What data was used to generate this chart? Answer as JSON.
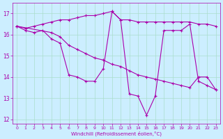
{
  "xlabel": "Windchill (Refroidissement éolien,°C)",
  "background_color": "#cceeff",
  "grid_color": "#aaddcc",
  "line_color": "#aa00aa",
  "xlim": [
    -0.5,
    23.5
  ],
  "ylim": [
    11.8,
    17.5
  ],
  "yticks": [
    12,
    13,
    14,
    15,
    16,
    17
  ],
  "xticks": [
    0,
    1,
    2,
    3,
    4,
    5,
    6,
    7,
    8,
    9,
    10,
    11,
    12,
    13,
    14,
    15,
    16,
    17,
    18,
    19,
    20,
    21,
    22,
    23
  ],
  "series1": {
    "x": [
      0,
      1,
      2,
      3,
      4,
      5,
      6,
      7,
      8,
      9,
      10,
      11,
      12,
      13,
      14,
      15,
      16,
      17,
      18,
      19,
      20,
      21,
      22,
      23
    ],
    "y": [
      16.4,
      16.3,
      16.4,
      16.5,
      16.6,
      16.7,
      16.7,
      16.8,
      16.9,
      16.9,
      17.0,
      17.1,
      16.7,
      16.7,
      16.6,
      16.6,
      16.6,
      16.6,
      16.6,
      16.6,
      16.6,
      16.5,
      16.5,
      16.4
    ]
  },
  "series2": {
    "x": [
      0,
      1,
      2,
      3,
      4,
      5,
      6,
      7,
      8,
      9,
      10,
      11,
      12,
      13,
      14,
      15,
      16,
      17,
      18,
      19,
      20,
      21,
      22,
      23
    ],
    "y": [
      16.4,
      16.2,
      16.1,
      16.2,
      15.8,
      15.6,
      14.1,
      14.0,
      13.8,
      13.8,
      14.4,
      17.1,
      16.7,
      13.2,
      13.1,
      12.2,
      13.1,
      16.2,
      16.2,
      16.2,
      16.5,
      13.8,
      13.6,
      13.4
    ]
  },
  "series3": {
    "x": [
      0,
      4,
      5,
      6,
      7,
      8,
      9,
      10,
      11,
      12,
      13,
      14,
      15,
      16,
      17,
      18,
      19,
      20,
      21,
      22,
      23
    ],
    "y": [
      16.4,
      16.1,
      15.9,
      15.5,
      15.3,
      15.1,
      14.9,
      14.8,
      14.6,
      14.5,
      14.3,
      14.1,
      14.0,
      13.9,
      13.8,
      13.7,
      13.6,
      13.5,
      14.0,
      14.0,
      13.4
    ]
  }
}
